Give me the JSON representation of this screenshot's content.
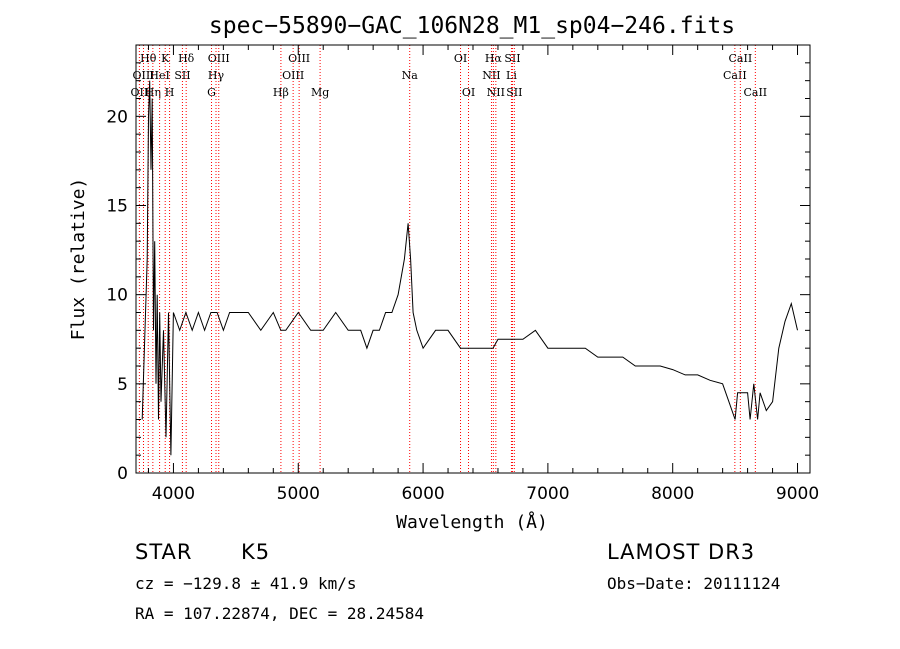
{
  "chart_data": {
    "type": "line",
    "title": "spec−55890−GAC_106N28_M1_sp04−246.fits",
    "xlabel": "Wavelength (Å)",
    "ylabel": "Flux (relative)",
    "xlim": [
      3700,
      9100
    ],
    "ylim": [
      0,
      24
    ],
    "x_ticks": [
      "4000",
      "5000",
      "6000",
      "7000",
      "8000",
      "9000"
    ],
    "x_tick_values": [
      4000,
      5000,
      6000,
      7000,
      8000,
      9000
    ],
    "y_ticks": [
      "0",
      "5",
      "10",
      "15",
      "20"
    ],
    "y_tick_values": [
      0,
      5,
      10,
      15,
      20
    ],
    "series": [
      {
        "name": "spectrum",
        "x": [
          3750,
          3790,
          3800,
          3810,
          3820,
          3830,
          3840,
          3850,
          3860,
          3870,
          3880,
          3890,
          3900,
          3920,
          3940,
          3960,
          3980,
          4000,
          4050,
          4100,
          4150,
          4200,
          4250,
          4300,
          4350,
          4400,
          4450,
          4500,
          4600,
          4700,
          4800,
          4860,
          4900,
          5000,
          5100,
          5200,
          5300,
          5400,
          5500,
          5550,
          5600,
          5650,
          5700,
          5750,
          5800,
          5850,
          5880,
          5900,
          5920,
          5950,
          6000,
          6100,
          6200,
          6300,
          6400,
          6500,
          6560,
          6600,
          6700,
          6800,
          6900,
          7000,
          7100,
          7200,
          7300,
          7400,
          7500,
          7600,
          7700,
          7800,
          7900,
          8000,
          8100,
          8200,
          8300,
          8400,
          8450,
          8500,
          8520,
          8550,
          8600,
          8620,
          8650,
          8680,
          8700,
          8750,
          8800,
          8850,
          8900,
          8950,
          9000
        ],
        "y": [
          3,
          12,
          20,
          22,
          17,
          21,
          8,
          13,
          5,
          10,
          3,
          9,
          4,
          8,
          2,
          9,
          1,
          9,
          8,
          9,
          8,
          9,
          8,
          9,
          9,
          8,
          9,
          9,
          9,
          8,
          9,
          8,
          8,
          9,
          8,
          8,
          9,
          8,
          8,
          7,
          8,
          8,
          9,
          9,
          10,
          12,
          14,
          12,
          9,
          8,
          7,
          8,
          8,
          7,
          7,
          7,
          7,
          7.5,
          7.5,
          7.5,
          8,
          7,
          7,
          7,
          7,
          6.5,
          6.5,
          6.5,
          6,
          6,
          6,
          5.8,
          5.5,
          5.5,
          5.2,
          5,
          4,
          3,
          4.5,
          4.5,
          4.5,
          3,
          5,
          3,
          4.5,
          3.5,
          4,
          7,
          8.5,
          9.5,
          8
        ]
      }
    ],
    "lines": [
      {
        "name": "OII",
        "wave": 3727,
        "row": 3
      },
      {
        "name": "Hθ",
        "wave": 3798,
        "row": 1
      },
      {
        "name": "OIII",
        "wave": 3760,
        "row": 2
      },
      {
        "name": "Hη",
        "wave": 3835,
        "row": 3
      },
      {
        "name": "HeI",
        "wave": 3889,
        "row": 2
      },
      {
        "name": "K",
        "wave": 3934,
        "row": 1
      },
      {
        "name": "H",
        "wave": 3969,
        "row": 3
      },
      {
        "name": "SII",
        "wave": 4072,
        "row": 2
      },
      {
        "name": "Hδ",
        "wave": 4102,
        "row": 1
      },
      {
        "name": "G",
        "wave": 4305,
        "row": 3
      },
      {
        "name": "OIII",
        "wave": 4363,
        "row": 1
      },
      {
        "name": "Hγ",
        "wave": 4341,
        "row": 2
      },
      {
        "name": "Hβ",
        "wave": 4861,
        "row": 3
      },
      {
        "name": "OIII",
        "wave": 4959,
        "row": 2
      },
      {
        "name": "OIII",
        "wave": 5007,
        "row": 1
      },
      {
        "name": "Mg",
        "wave": 5175,
        "row": 3
      },
      {
        "name": "Na",
        "wave": 5893,
        "row": 2
      },
      {
        "name": "OI",
        "wave": 6300,
        "row": 1
      },
      {
        "name": "OI",
        "wave": 6364,
        "row": 3
      },
      {
        "name": "NII",
        "wave": 6548,
        "row": 2
      },
      {
        "name": "Hα",
        "wave": 6563,
        "row": 1
      },
      {
        "name": "NII",
        "wave": 6583,
        "row": 3
      },
      {
        "name": "Li",
        "wave": 6708,
        "row": 2
      },
      {
        "name": "SII",
        "wave": 6716,
        "row": 1
      },
      {
        "name": "SII",
        "wave": 6731,
        "row": 3
      },
      {
        "name": "CaII",
        "wave": 8498,
        "row": 2
      },
      {
        "name": "CaII",
        "wave": 8542,
        "row": 1
      },
      {
        "name": "CaII",
        "wave": 8662,
        "row": 3
      }
    ],
    "line_color": "#ff0000",
    "spectrum_color": "#000000"
  },
  "annotations": {
    "class": "STAR",
    "subclass": "K5",
    "survey": "LAMOST DR3",
    "cz": "cz = −129.8 ± 41.9 km/s",
    "obs_date": "Obs−Date: 20111124",
    "coords": "RA = 107.22874, DEC =  28.24584"
  }
}
